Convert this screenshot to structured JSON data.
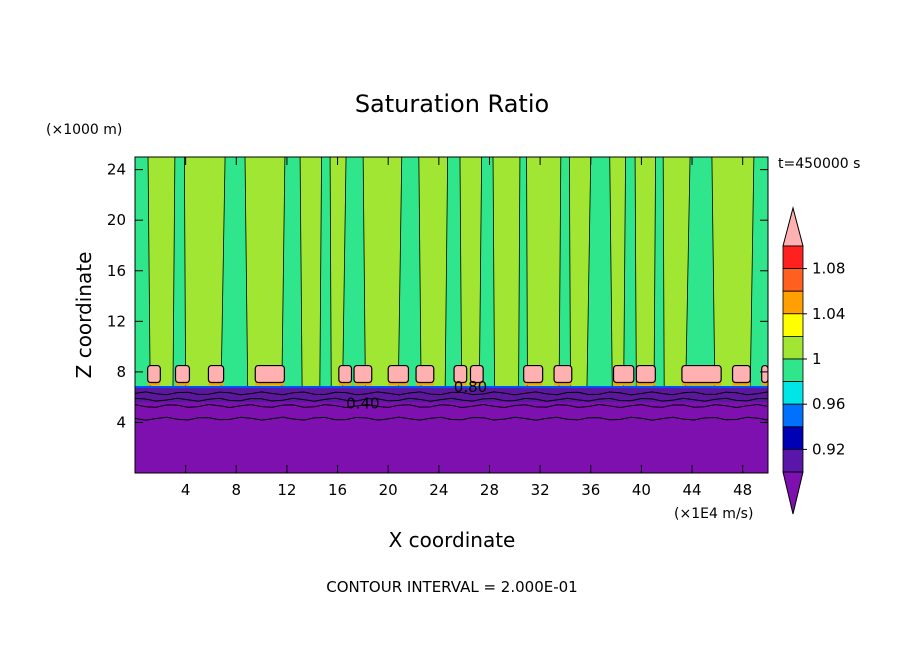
{
  "chart_data": {
    "type": "heatmap",
    "title": "Saturation Ratio",
    "xlabel": "X coordinate",
    "ylabel": "Z coordinate",
    "x_unit": "(×1E4 m/s)",
    "y_unit": "(×1000 m)",
    "time_label": "t=450000 s",
    "footer": "CONTOUR INTERVAL = 2.000E-01",
    "xlim": [
      0,
      50
    ],
    "ylim": [
      0,
      25
    ],
    "x_ticks": [
      4,
      8,
      12,
      16,
      20,
      24,
      28,
      32,
      36,
      40,
      44,
      48
    ],
    "y_ticks": [
      4,
      8,
      12,
      16,
      20,
      24
    ],
    "contour_labels": [
      {
        "text": "0.40",
        "x": 18,
        "y": 5.5
      },
      {
        "text": "0.80",
        "x": 26.5,
        "y": 6.8
      }
    ],
    "colorbar": {
      "labels": [
        "1.08",
        "1.04",
        "1",
        "0.96",
        "0.92"
      ],
      "levels": [
        0.9,
        0.92,
        0.94,
        0.96,
        0.98,
        1.0,
        1.02,
        1.04,
        1.06,
        1.08,
        1.1
      ],
      "colors": [
        "#ffb0b0",
        "#ff2020",
        "#ff6020",
        "#ffa000",
        "#ffff00",
        "#a0e632",
        "#30e68c",
        "#00e6e6",
        "#0070ff",
        "#0000b4",
        "#5a16a8",
        "#7e10b0"
      ]
    },
    "regions": {
      "dry_layer": {
        "z_top": 6.8,
        "color": "#7e10b0",
        "upper_band": "#5c189c"
      },
      "background_color": "#a0e632",
      "moist_color": "#30e68c",
      "moist_columns": [
        [
          -0.5,
          1.2
        ],
        [
          3.0,
          4.0
        ],
        [
          6.8,
          8.9
        ],
        [
          11.6,
          13.2
        ],
        [
          14.6,
          15.5
        ],
        [
          16.4,
          18.2
        ],
        [
          20.8,
          22.6
        ],
        [
          24.5,
          25.8
        ],
        [
          27.2,
          28.4
        ],
        [
          30.3,
          31.0
        ],
        [
          33.5,
          34.4
        ],
        [
          35.7,
          37.7
        ],
        [
          38.6,
          39.6
        ],
        [
          41.0,
          41.8
        ],
        [
          43.5,
          45.8
        ],
        [
          48.6,
          50.5
        ]
      ],
      "cloud_caps": [
        [
          1.0,
          2.0
        ],
        [
          3.2,
          4.3
        ],
        [
          5.8,
          7.0
        ],
        [
          9.5,
          11.8
        ],
        [
          16.1,
          17.1
        ],
        [
          17.3,
          18.7
        ],
        [
          20.0,
          21.6
        ],
        [
          22.2,
          23.6
        ],
        [
          25.2,
          26.2
        ],
        [
          26.5,
          27.5
        ],
        [
          30.7,
          32.2
        ],
        [
          33.1,
          34.5
        ],
        [
          37.8,
          39.4
        ],
        [
          39.6,
          41.1
        ],
        [
          43.2,
          46.3
        ],
        [
          47.2,
          48.6
        ],
        [
          49.5,
          50.0
        ]
      ]
    }
  }
}
